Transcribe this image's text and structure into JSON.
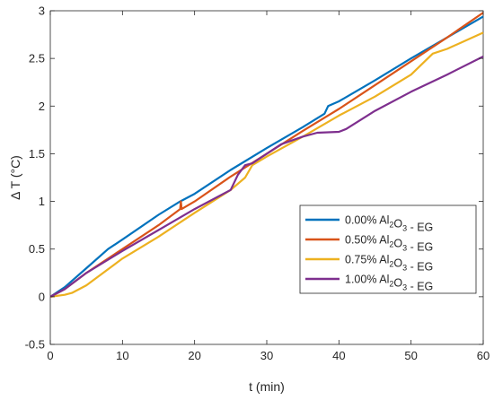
{
  "chart_data": {
    "type": "line",
    "xlabel": "t (min)",
    "ylabel": "Δ T (°C)",
    "xlim": [
      0,
      60
    ],
    "ylim": [
      -0.5,
      3
    ],
    "xticks": [
      0,
      10,
      20,
      30,
      40,
      50,
      60
    ],
    "yticks": [
      -0.5,
      0,
      0.5,
      1,
      1.5,
      2,
      2.5,
      3
    ],
    "xtick_labels": [
      "0",
      "10",
      "20",
      "30",
      "40",
      "50",
      "60"
    ],
    "ytick_labels": [
      "-0.5",
      "0",
      "0.5",
      "1",
      "1.5",
      "2",
      "2.5",
      "3"
    ],
    "grid": false,
    "legend_position": "center-right",
    "series": [
      {
        "name": "0.00% Al2O3 -  EG",
        "legend": {
          "pre": "0.00% Al",
          "sub1": "2",
          "mid": "O",
          "sub2": "3",
          "post": " -  EG"
        },
        "color": "#0072BD",
        "x": [
          0,
          2,
          5,
          8,
          10,
          15,
          18,
          20,
          25,
          30,
          35,
          38,
          38.5,
          40,
          45,
          50,
          55,
          60
        ],
        "y": [
          0,
          0.1,
          0.3,
          0.5,
          0.6,
          0.86,
          1.0,
          1.08,
          1.33,
          1.56,
          1.78,
          1.92,
          2.0,
          2.05,
          2.27,
          2.5,
          2.72,
          2.94
        ]
      },
      {
        "name": "0.50% Al2O3 -  EG",
        "legend": {
          "pre": "0.50% Al",
          "sub1": "2",
          "mid": "O",
          "sub2": "3",
          "post": " -  EG"
        },
        "color": "#D95319",
        "x": [
          0,
          2,
          5,
          10,
          15,
          18,
          18.1,
          18.2,
          20,
          25,
          30,
          35,
          40,
          45,
          50,
          55,
          60
        ],
        "y": [
          0,
          0.08,
          0.25,
          0.5,
          0.75,
          0.92,
          1.0,
          0.92,
          1.0,
          1.26,
          1.5,
          1.74,
          1.97,
          2.22,
          2.47,
          2.72,
          2.98
        ]
      },
      {
        "name": "0.75% Al2O3 -  EG",
        "legend": {
          "pre": "0.75% Al",
          "sub1": "2",
          "mid": "O",
          "sub2": "3",
          "post": " -  EG"
        },
        "color": "#EDB120",
        "x": [
          0,
          2,
          3,
          5,
          10,
          15,
          20,
          25,
          27,
          28,
          30,
          35,
          40,
          45,
          50,
          53,
          55,
          60
        ],
        "y": [
          0,
          0.02,
          0.04,
          0.12,
          0.4,
          0.63,
          0.88,
          1.12,
          1.25,
          1.38,
          1.47,
          1.68,
          1.9,
          2.1,
          2.33,
          2.55,
          2.6,
          2.77
        ]
      },
      {
        "name": "1.00% Al2O3 -  EG",
        "legend": {
          "pre": "1.00% Al",
          "sub1": "2",
          "mid": "O",
          "sub2": "3",
          "post": " -  EG"
        },
        "color": "#7E2F8E",
        "x": [
          0,
          2,
          5,
          10,
          15,
          20,
          25,
          26,
          27,
          28,
          30,
          32,
          35,
          37,
          40,
          41,
          45,
          50,
          55,
          60
        ],
        "y": [
          0,
          0.08,
          0.25,
          0.48,
          0.7,
          0.92,
          1.12,
          1.28,
          1.38,
          1.4,
          1.5,
          1.6,
          1.68,
          1.72,
          1.73,
          1.76,
          1.95,
          2.15,
          2.33,
          2.52
        ]
      }
    ]
  }
}
